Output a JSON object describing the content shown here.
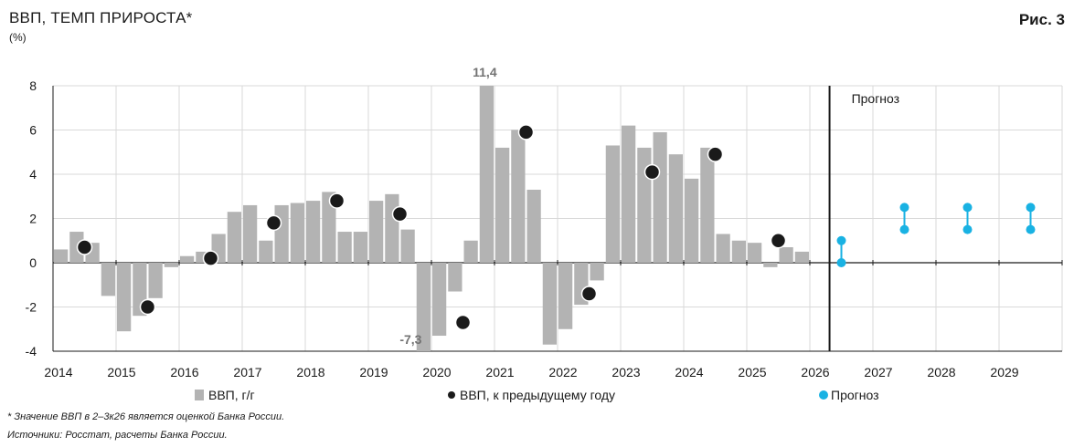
{
  "header": {
    "title": "ВВП, ТЕМП ПРИРОСТА*",
    "unit": "(%)",
    "figure": "Рис. 3"
  },
  "chart_data": {
    "type": "bar",
    "ylim": [
      -4,
      8
    ],
    "yticks": [
      8,
      6,
      4,
      2,
      0,
      -2,
      -4
    ],
    "year_labels": [
      "2014",
      "2015",
      "2016",
      "2017",
      "2018",
      "2019",
      "2020",
      "2021",
      "2022",
      "2023",
      "2024",
      "2025",
      "2026",
      "2027",
      "2028",
      "2029"
    ],
    "forecast_label": "Прогноз",
    "grid": "horizontal",
    "quarterly_yoy": {
      "name": "ВВП, г/г",
      "color": "#b3b3b3",
      "values": [
        0.6,
        1.4,
        0.9,
        -1.5,
        -3.1,
        -2.4,
        -1.6,
        -0.2,
        0.3,
        0.5,
        1.3,
        2.3,
        2.6,
        1.0,
        2.6,
        2.7,
        2.8,
        3.2,
        1.4,
        1.4,
        2.8,
        3.1,
        1.5,
        -7.3,
        -3.3,
        -1.3,
        1.0,
        11.4,
        5.2,
        6.0,
        3.3,
        -3.7,
        -3.0,
        -1.9,
        -0.8,
        5.3,
        6.2,
        5.2,
        5.9,
        4.9,
        3.8,
        5.2,
        1.3,
        1.0,
        0.9,
        -0.2,
        0.7,
        0.5
      ],
      "labels": [
        {
          "index": 23,
          "text": "-7,3"
        },
        {
          "index": 27,
          "text": "11,4"
        }
      ]
    },
    "annual": {
      "name": "ВВП, к предыдущему году",
      "color": "#1a1a1a",
      "points": [
        {
          "year": 2014,
          "value": 0.7
        },
        {
          "year": 2015,
          "value": -2.0
        },
        {
          "year": 2016,
          "value": 0.2
        },
        {
          "year": 2017,
          "value": 1.8
        },
        {
          "year": 2018,
          "value": 2.8
        },
        {
          "year": 2019,
          "value": 2.2
        },
        {
          "year": 2020,
          "value": -2.7
        },
        {
          "year": 2021,
          "value": 5.9
        },
        {
          "year": 2022,
          "value": -1.4
        },
        {
          "year": 2023,
          "value": 4.1
        },
        {
          "year": 2024,
          "value": 4.9
        },
        {
          "year": 2025,
          "value": 1.0
        }
      ]
    },
    "forecast": {
      "name": "Прогноз",
      "color": "#19b2e3",
      "ranges": [
        {
          "year": 2026,
          "low": 0.0,
          "high": 1.0
        },
        {
          "year": 2027,
          "low": 1.5,
          "high": 2.5
        },
        {
          "year": 2028,
          "low": 1.5,
          "high": 2.5
        },
        {
          "year": 2029,
          "low": 1.5,
          "high": 2.5
        }
      ]
    }
  },
  "legend": {
    "bars": "ВВП, г/г",
    "dots": "ВВП, к предыдущему году",
    "forecast": "Прогноз"
  },
  "notes": {
    "note1": "* Значение ВВП в 2–3к26 является оценкой Банка России.",
    "note2": "Источники: Росстат, расчеты Банка России."
  }
}
